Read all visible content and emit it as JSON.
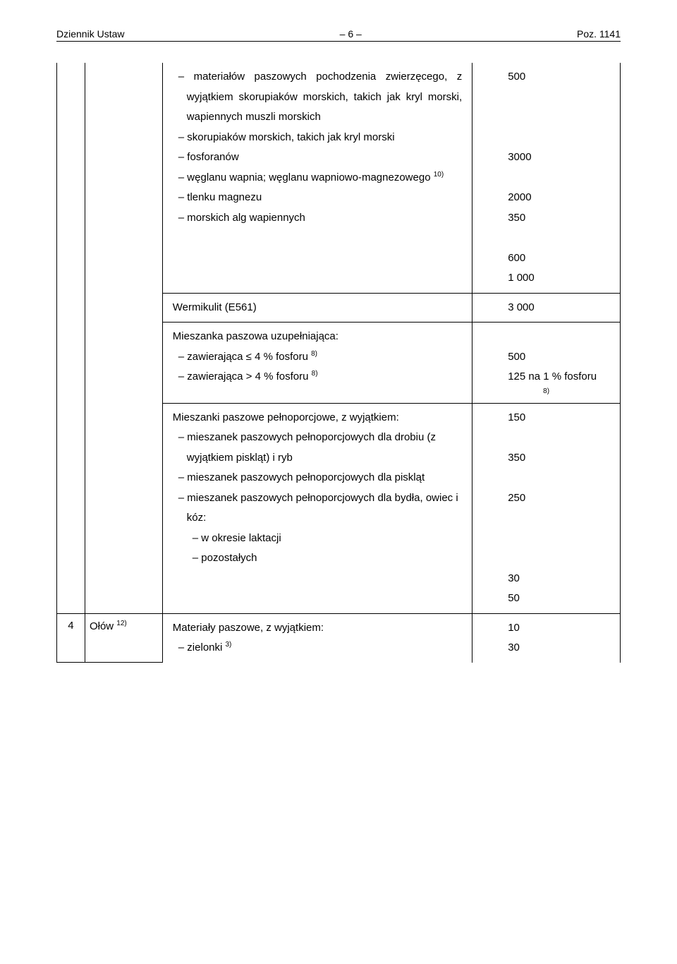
{
  "header": {
    "left": "Dziennik Ustaw",
    "center": "– 6 –",
    "right": "Poz. 1141"
  },
  "rows": [
    {
      "cells": [
        {
          "desc": "– materiałów paszowych pochodzenia zwierzęcego, z wyjątkiem skorupiaków morskich, takich jak kryl morski, wapiennych muszli morskich",
          "val": "500",
          "indentClass": "indent1",
          "justify": true
        },
        {
          "desc": "– skorupiaków morskich, takich jak kryl morski",
          "val": "3000",
          "indentClass": "indent1"
        },
        {
          "desc": "– fosforanów",
          "val": "2000",
          "indentClass": "indent1"
        },
        {
          "desc": "– węglanu wapnia; węglanu wapniowo-magnezowego",
          "val": "",
          "indentClass": "indent1",
          "sup": "10)",
          "twoLineVal": [
            "350",
            ""
          ]
        },
        {
          "desc": "– tlenku magnezu",
          "val": "600",
          "indentClass": "indent1"
        },
        {
          "desc": "– morskich alg wapiennych",
          "val": "1 000",
          "indentClass": "indent1"
        }
      ],
      "divider": true
    },
    {
      "cells": [
        {
          "desc": "Wermikulit (E561)",
          "val": "3 000"
        }
      ],
      "divider": true
    },
    {
      "cells": [
        {
          "desc": "Mieszanka paszowa uzupełniająca:",
          "val": ""
        },
        {
          "desc": "– zawierająca ≤ 4 % fosforu",
          "val": "500",
          "indentClass": "indent1",
          "sup": "8)"
        },
        {
          "desc": "– zawierająca > 4 % fosforu",
          "val": "125 na 1 % fosforu",
          "indentClass": "indent1",
          "sup": "8)",
          "valSup": "8)"
        }
      ],
      "divider": true
    },
    {
      "cells": [
        {
          "desc": "Mieszanki paszowe pełnoporcjowe, z wyjątkiem:",
          "val": "150",
          "justify": true
        },
        {
          "desc": "– mieszanek paszowych pełnoporcjowych dla drobiu (z wyjątkiem piskląt) i ryb",
          "val": "350",
          "indentClass": "indent1"
        },
        {
          "desc": "– mieszanek paszowych pełnoporcjowych dla piskląt",
          "val": "250",
          "indentClass": "indent1"
        },
        {
          "desc": "– mieszanek paszowych pełnoporcjowych dla bydła, owiec i kóz:",
          "val": "",
          "indentClass": "indent1"
        },
        {
          "desc": "– w okresie laktacji",
          "val": "30",
          "indentClass": "indent2"
        },
        {
          "desc": "– pozostałych",
          "val": "50",
          "indentClass": "indent2"
        }
      ],
      "divider": true,
      "bottomRow": true
    }
  ],
  "lastRow": {
    "num": "4",
    "name": "Ołów",
    "nameSup": "12)",
    "cells": [
      {
        "desc": "Materiały paszowe, z wyjątkiem:",
        "val": "10"
      },
      {
        "desc": "– zielonki",
        "val": "30",
        "indentClass": "indent1",
        "sup": "3)"
      }
    ]
  }
}
